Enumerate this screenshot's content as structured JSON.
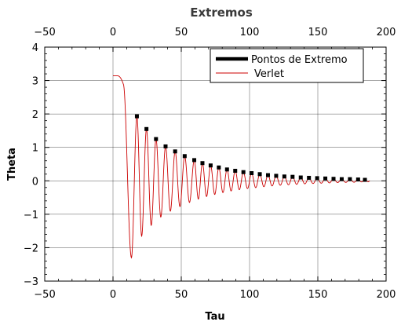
{
  "chart_data": {
    "type": "line",
    "title": "Extremos",
    "xlabel": "Tau",
    "ylabel": "Theta",
    "xlim": [
      -50,
      200
    ],
    "ylim": [
      -3,
      4
    ],
    "xticks": [
      -50,
      0,
      50,
      100,
      150,
      200
    ],
    "yticks": [
      -3,
      -2,
      -1,
      0,
      1,
      2,
      3,
      4
    ],
    "grid": true,
    "legend_position": "top-right",
    "colors": {
      "extremes": "#000000",
      "verlet": "#cc0000",
      "grid": "#000000",
      "frame": "#000000"
    },
    "series": [
      {
        "name": "Pontos de Extremo",
        "style": "markers",
        "x": [
          17.5,
          24.5,
          31.5,
          38.5,
          45.5,
          52.5,
          59.5,
          65.5,
          71.5,
          77.5,
          83.5,
          89.5,
          95.5,
          101.5,
          107.5,
          113.5,
          119.5,
          125.5,
          131.5,
          137.5,
          143.5,
          149.5,
          155.5,
          161.5,
          167.5,
          173.5,
          179.5,
          184.5
        ],
        "y": [
          1.93,
          1.55,
          1.25,
          1.03,
          0.88,
          0.74,
          0.62,
          0.53,
          0.46,
          0.4,
          0.34,
          0.3,
          0.26,
          0.23,
          0.2,
          0.17,
          0.15,
          0.13,
          0.12,
          0.1,
          0.09,
          0.08,
          0.07,
          0.06,
          0.05,
          0.05,
          0.04,
          0.03
        ]
      },
      {
        "name": "Verlet",
        "style": "line",
        "start": {
          "x": 0,
          "y": 3.14
        },
        "flat_until": 3.5,
        "decay_start": 7.5,
        "first_min": {
          "x": 13.5,
          "y": -2.3
        },
        "end_x": 188
      }
    ]
  }
}
